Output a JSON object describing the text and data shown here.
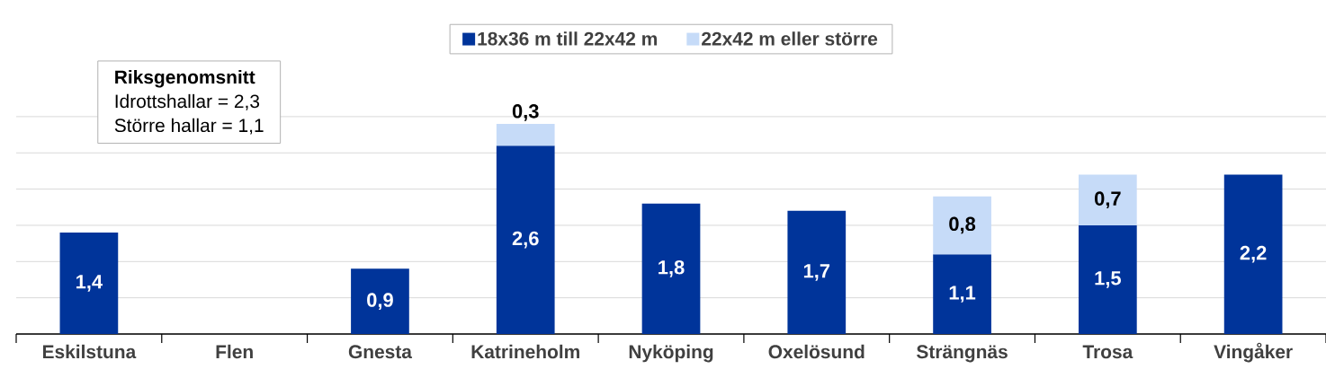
{
  "chart_data": {
    "type": "bar",
    "stacked": true,
    "categories": [
      "Eskilstuna",
      "Flen",
      "Gnesta",
      "Katrineholm",
      "Nyköping",
      "Oxelösund",
      "Strängnäs",
      "Trosa",
      "Vingåker"
    ],
    "series": [
      {
        "name": "18x36 m till 22x42 m",
        "color": "#00349a",
        "values": [
          1.4,
          null,
          0.9,
          2.6,
          1.8,
          1.7,
          1.1,
          1.5,
          2.2
        ],
        "value_labels": [
          "1,4",
          null,
          "0,9",
          "2,6",
          "1,8",
          "1,7",
          "1,1",
          "1,5",
          "2,2"
        ]
      },
      {
        "name": "22x42 m eller större",
        "color": "#c6dbf8",
        "values": [
          null,
          null,
          null,
          0.3,
          null,
          null,
          0.8,
          0.7,
          null
        ],
        "value_labels": [
          null,
          null,
          null,
          "0,3",
          null,
          null,
          "0,8",
          "0,7",
          null
        ]
      }
    ],
    "tick_labels": "x",
    "grid": "y",
    "legend": "top",
    "annotations": [
      "Riksgenomsnitt",
      "Idrottshallar = 2,3",
      "Större hallar = 1,1"
    ]
  }
}
